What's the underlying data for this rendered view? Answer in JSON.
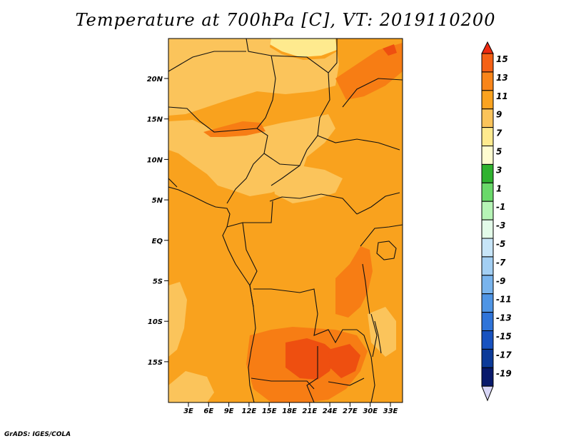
{
  "title": "Temperature at 700hPa [C], VT: 2019110200",
  "credit": "GrADS: IGES/COLA",
  "map": {
    "lat_ticks": [
      "20N",
      "15N",
      "10N",
      "5N",
      "EQ",
      "5S",
      "10S",
      "15S"
    ],
    "lon_ticks": [
      "3E",
      "6E",
      "9E",
      "12E",
      "15E",
      "18E",
      "21E",
      "24E",
      "27E",
      "30E",
      "33E"
    ],
    "fill_colors": {
      "base": "#f9a21e",
      "light": "#fbc45b",
      "pale": "#feea8e",
      "warm": "#f77d14",
      "hot": "#ee4f10"
    }
  },
  "colorbar": {
    "labels": [
      "15",
      "13",
      "11",
      "9",
      "7",
      "5",
      "3",
      "1",
      "-1",
      "-3",
      "-5",
      "-7",
      "-9",
      "-11",
      "-13",
      "-15",
      "-17",
      "-19"
    ],
    "colors": [
      "#ee2a10",
      "#f56115",
      "#f98519",
      "#fba31f",
      "#fbc45b",
      "#feea8e",
      "#fefcd0",
      "#2fb22f",
      "#6ad96a",
      "#b6f4b6",
      "#e3fbe9",
      "#c7e5f8",
      "#a3cff3",
      "#79b4ed",
      "#4f95e5",
      "#2f74d9",
      "#1752c0",
      "#0c3a99",
      "#08196b",
      "#d8d6f6"
    ]
  }
}
